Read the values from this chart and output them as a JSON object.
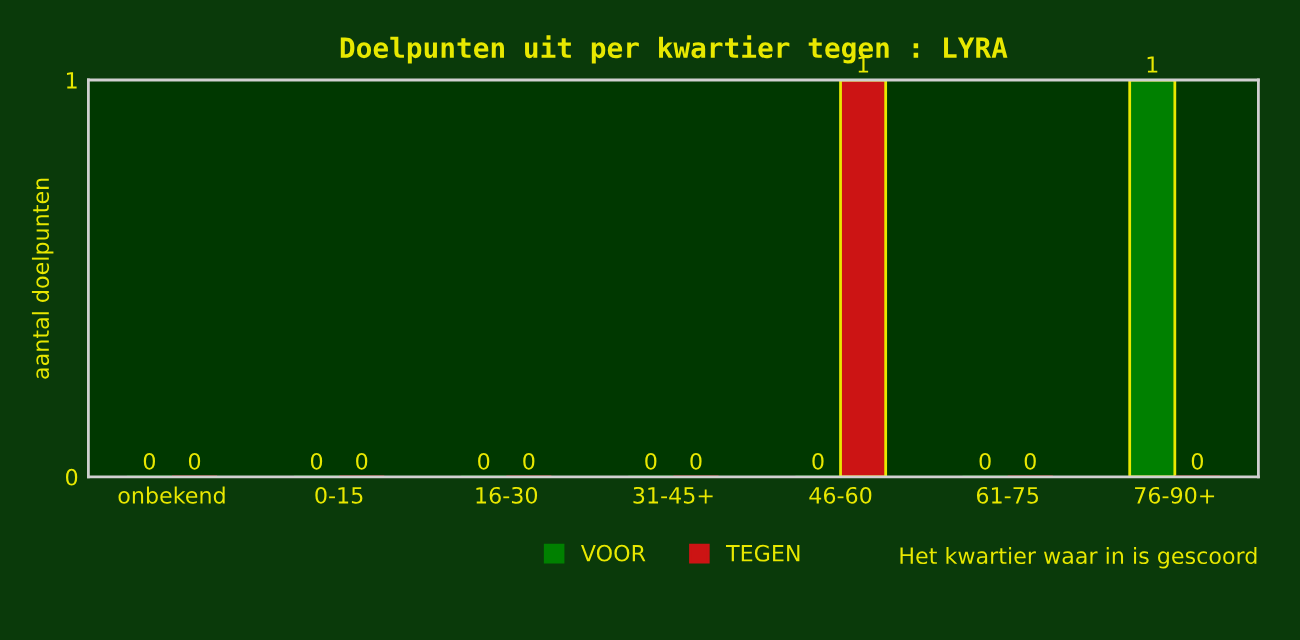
{
  "chart_data": {
    "type": "bar",
    "title": "Doelpunten uit per kwartier tegen : LYRA",
    "xlabel": "Het kwartier waar in is gescoord",
    "ylabel": "aantal doelpunten",
    "categories": [
      "onbekend",
      "0-15",
      "16-30",
      "31-45+",
      "46-60",
      "61-75",
      "76-90+"
    ],
    "series": [
      {
        "name": "VOOR",
        "color": "#008000",
        "values": [
          0,
          0,
          0,
          0,
          0,
          0,
          1
        ]
      },
      {
        "name": "TEGEN",
        "color": "#cc1414",
        "values": [
          0,
          0,
          0,
          0,
          1,
          0,
          0
        ]
      }
    ],
    "ylim": [
      0,
      1
    ],
    "yticks": [
      0,
      1
    ],
    "data_labels": true,
    "legend": "bottom",
    "grid": false
  }
}
